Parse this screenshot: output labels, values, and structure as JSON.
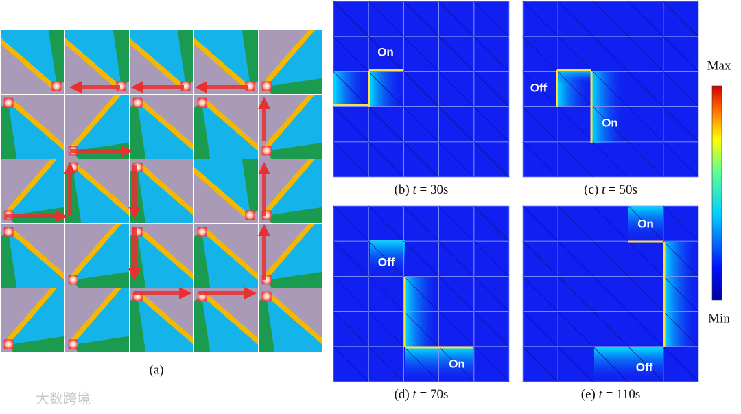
{
  "panel_a": {
    "caption": "(a)"
  },
  "panels": [
    {
      "caption": {
        "label": "(b)",
        "variable": "t",
        "value": "= 30s"
      },
      "annotations": [
        "On"
      ]
    },
    {
      "caption": {
        "label": "(c)",
        "variable": "t",
        "value": "= 50s"
      },
      "annotations": [
        "Off",
        "On"
      ]
    },
    {
      "caption": {
        "label": "(d)",
        "variable": "t",
        "value": "= 70s"
      },
      "annotations": [
        "Off",
        "On"
      ]
    },
    {
      "caption": {
        "label": "(e)",
        "variable": "t",
        "value": "= 110s"
      },
      "annotations": [
        "On",
        "Off"
      ]
    }
  ],
  "colorbar": {
    "max": "Max",
    "min": "Min"
  },
  "watermark": "大数跨境"
}
